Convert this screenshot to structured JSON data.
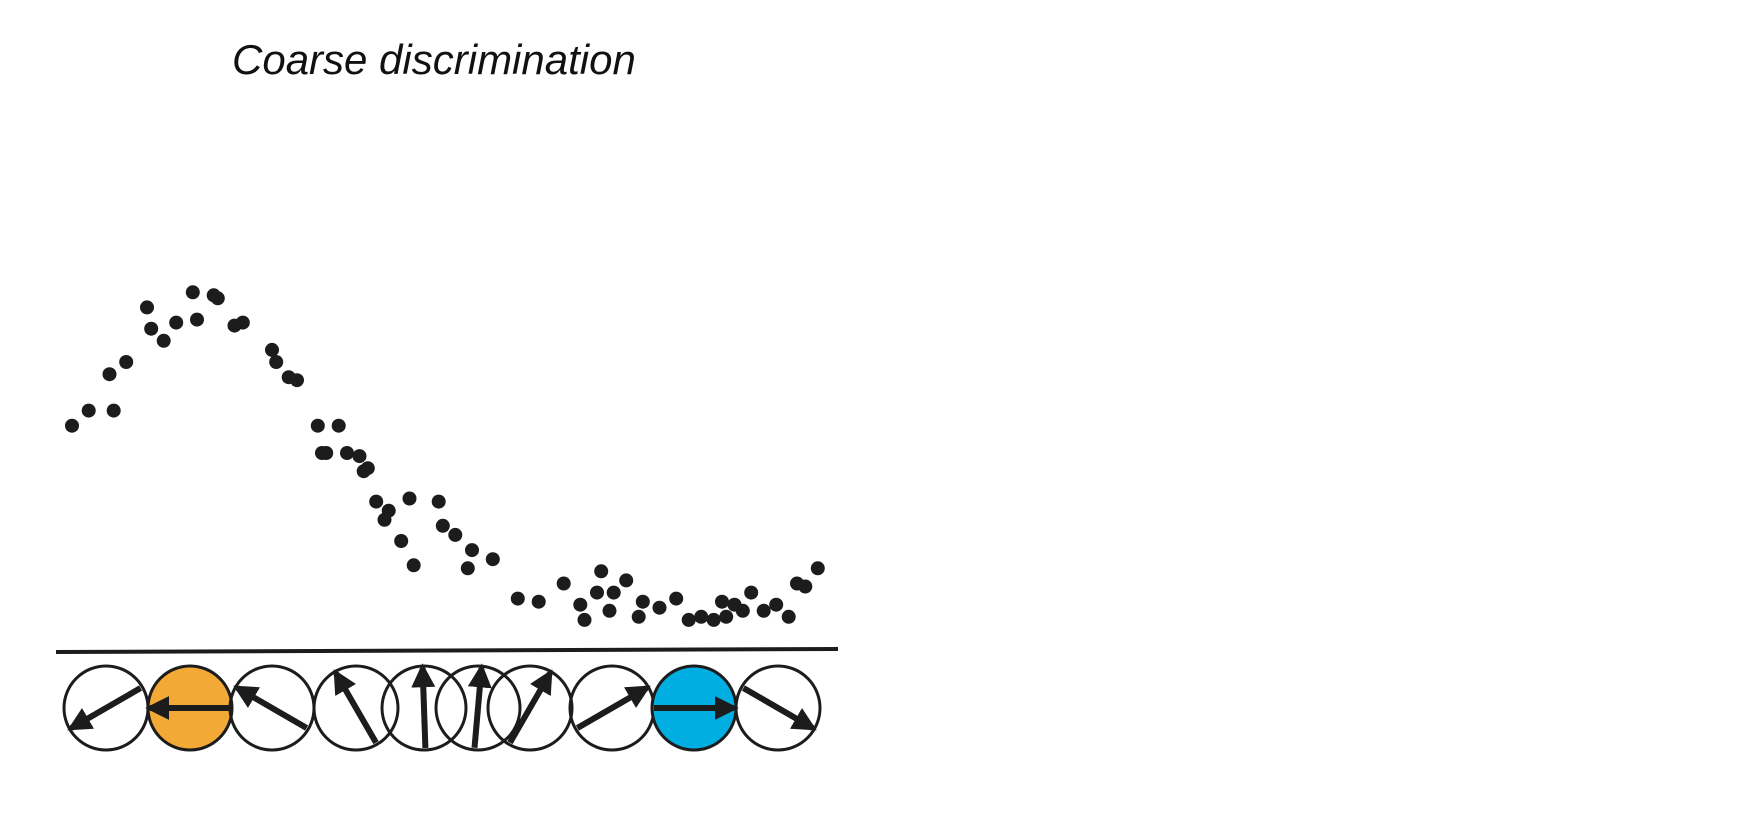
{
  "title": "Coarse discrimination",
  "colors": {
    "dot": "#1c1c1c",
    "line": "#1c1c1c",
    "highlight_left": "#F2A935",
    "highlight_right": "#00AEE2",
    "circle_stroke": "#1c1c1c",
    "circle_fill": "#ffffff"
  },
  "chart_data": {
    "type": "scatter",
    "title": "Coarse discrimination",
    "xlabel": "",
    "ylabel": "",
    "description_values": "relative response of each neuron vs. preferred orientation index",
    "x": [
      0.0,
      0.2,
      0.5,
      0.45,
      0.65,
      0.9,
      0.95,
      1.1,
      1.25,
      1.45,
      1.5,
      1.7,
      1.75,
      1.95,
      2.05,
      2.4,
      2.45,
      2.6,
      2.7,
      2.95,
      3.0,
      3.05,
      3.2,
      3.3,
      3.45,
      3.5,
      3.55,
      3.65,
      3.75,
      3.8,
      3.95,
      4.05,
      4.1,
      4.4,
      4.45,
      4.6,
      4.75,
      4.8,
      5.05,
      5.35,
      5.6,
      5.9,
      6.1,
      6.15,
      6.3,
      6.35,
      6.45,
      6.5,
      6.65,
      6.8,
      6.85,
      7.05,
      7.25,
      7.4,
      7.55,
      7.7,
      7.8,
      7.85,
      7.95,
      8.05,
      8.15,
      8.3,
      8.45,
      8.6,
      8.7,
      8.8,
      8.95
    ],
    "y": [
      0.38,
      0.43,
      0.43,
      0.55,
      0.59,
      0.77,
      0.7,
      0.66,
      0.72,
      0.82,
      0.73,
      0.81,
      0.8,
      0.71,
      0.72,
      0.63,
      0.59,
      0.54,
      0.53,
      0.38,
      0.29,
      0.29,
      0.38,
      0.29,
      0.28,
      0.23,
      0.24,
      0.13,
      0.07,
      0.1,
      0.0,
      0.14,
      -0.08,
      0.13,
      0.05,
      0.02,
      -0.09,
      -0.03,
      -0.06,
      -0.19,
      -0.2,
      -0.14,
      -0.21,
      -0.26,
      -0.17,
      -0.1,
      -0.23,
      -0.17,
      -0.13,
      -0.25,
      -0.2,
      -0.22,
      -0.19,
      -0.26,
      -0.25,
      -0.26,
      -0.2,
      -0.25,
      -0.21,
      -0.23,
      -0.17,
      -0.23,
      -0.21,
      -0.25,
      -0.14,
      -0.15,
      -0.09
    ],
    "neurons": [
      {
        "angle": 210,
        "fill": "none"
      },
      {
        "angle": 180,
        "fill": "left"
      },
      {
        "angle": 150,
        "fill": "none"
      },
      {
        "angle": 120,
        "fill": "none"
      },
      {
        "angle": 92,
        "fill": "none"
      },
      {
        "angle": 85,
        "fill": "none"
      },
      {
        "angle": 60,
        "fill": "none"
      },
      {
        "angle": 30,
        "fill": "none"
      },
      {
        "angle": 0,
        "fill": "right"
      },
      {
        "angle": -30,
        "fill": "none"
      }
    ],
    "xlim": [
      0,
      9
    ],
    "ylim": [
      -0.3,
      0.9
    ],
    "grid": false,
    "legend": "none"
  }
}
